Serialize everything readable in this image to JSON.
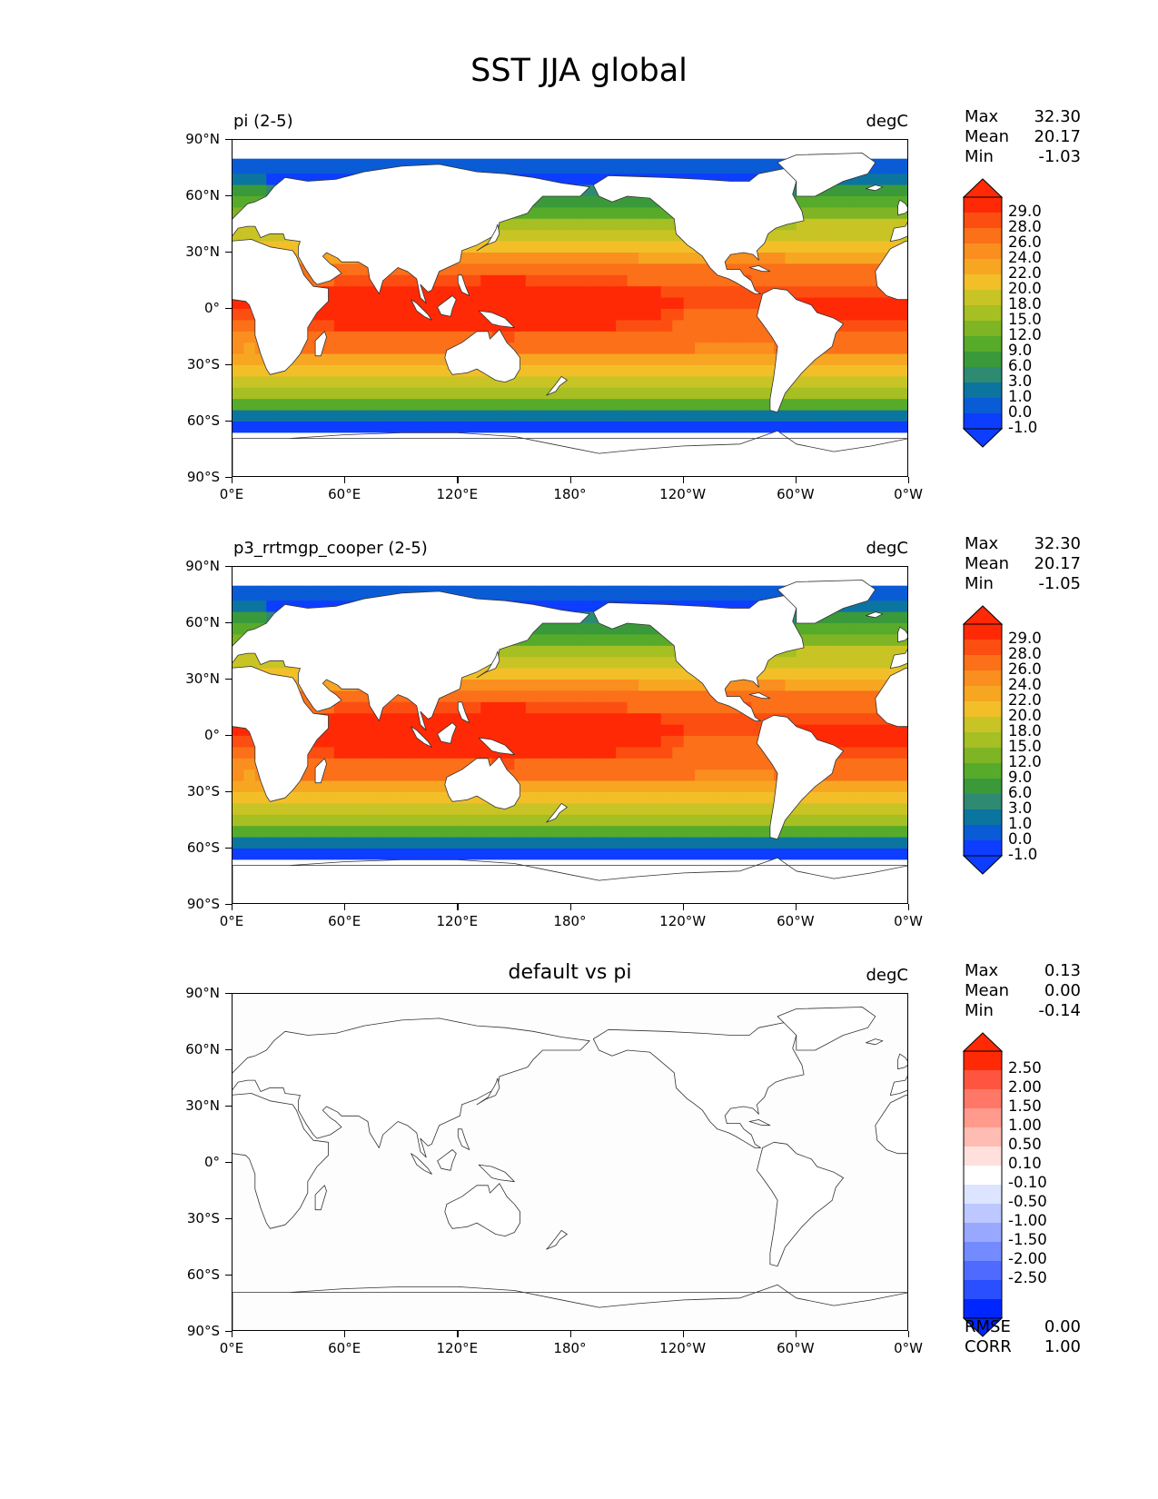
{
  "figure": {
    "title": "SST JJA global"
  },
  "axes": {
    "y_ticks": [
      "90°N",
      "60°N",
      "30°N",
      "0°",
      "30°S",
      "60°S",
      "90°S"
    ],
    "x_ticks": [
      "0°E",
      "60°E",
      "120°E",
      "180°",
      "120°W",
      "60°W",
      "0°W"
    ]
  },
  "colors": {
    "sst_levels": [
      "#0d3dff",
      "#0a5bd6",
      "#0b75a0",
      "#2f8a72",
      "#3a9a3a",
      "#57ab2b",
      "#7fb524",
      "#a6bf22",
      "#c9c425",
      "#f2bf28",
      "#f7a622",
      "#fa8e1e",
      "#fb7018",
      "#fd4e12",
      "#ff2a05"
    ],
    "diff_levels": [
      "#0026ff",
      "#2a4fff",
      "#4f6bff",
      "#748aff",
      "#98a8ff",
      "#bcc8ff",
      "#dde4ff",
      "#ffffff",
      "#ffe0dc",
      "#ffbcb2",
      "#ff9a8c",
      "#ff7767",
      "#ff5540",
      "#ff2a05"
    ],
    "land": "#ffffff",
    "coast": "#333333"
  },
  "chart_data": [
    {
      "type": "heatmap",
      "title": "pi (2-5)",
      "units": "degC",
      "stats": {
        "Max": "32.30",
        "Mean": "20.17",
        "Min": "-1.03"
      },
      "colorbar_labels": [
        "29.0",
        "28.0",
        "26.0",
        "24.0",
        "22.0",
        "20.0",
        "18.0",
        "15.0",
        "12.0",
        "9.0",
        "6.0",
        "3.0",
        "1.0",
        "0.0",
        "-1.0"
      ],
      "lon_range": [
        0,
        360
      ],
      "lat_range": [
        -90,
        90
      ]
    },
    {
      "type": "heatmap",
      "title": "p3_rrtmgp_cooper (2-5)",
      "units": "degC",
      "stats": {
        "Max": "32.30",
        "Mean": "20.17",
        "Min": "-1.05"
      },
      "colorbar_labels": [
        "29.0",
        "28.0",
        "26.0",
        "24.0",
        "22.0",
        "20.0",
        "18.0",
        "15.0",
        "12.0",
        "9.0",
        "6.0",
        "3.0",
        "1.0",
        "0.0",
        "-1.0"
      ],
      "lon_range": [
        0,
        360
      ],
      "lat_range": [
        -90,
        90
      ]
    },
    {
      "type": "heatmap",
      "title": "default vs pi",
      "units": "degC",
      "stats": {
        "Max": "0.13",
        "Mean": "0.00",
        "Min": "-0.14"
      },
      "colorbar_labels": [
        "2.50",
        "2.00",
        "1.50",
        "1.00",
        "0.50",
        "0.10",
        "-0.10",
        "-0.50",
        "-1.00",
        "-1.50",
        "-2.00",
        "-2.50"
      ],
      "metrics": {
        "RMSE": "0.00",
        "CORR": "1.00"
      },
      "lon_range": [
        0,
        360
      ],
      "lat_range": [
        -90,
        90
      ]
    }
  ]
}
